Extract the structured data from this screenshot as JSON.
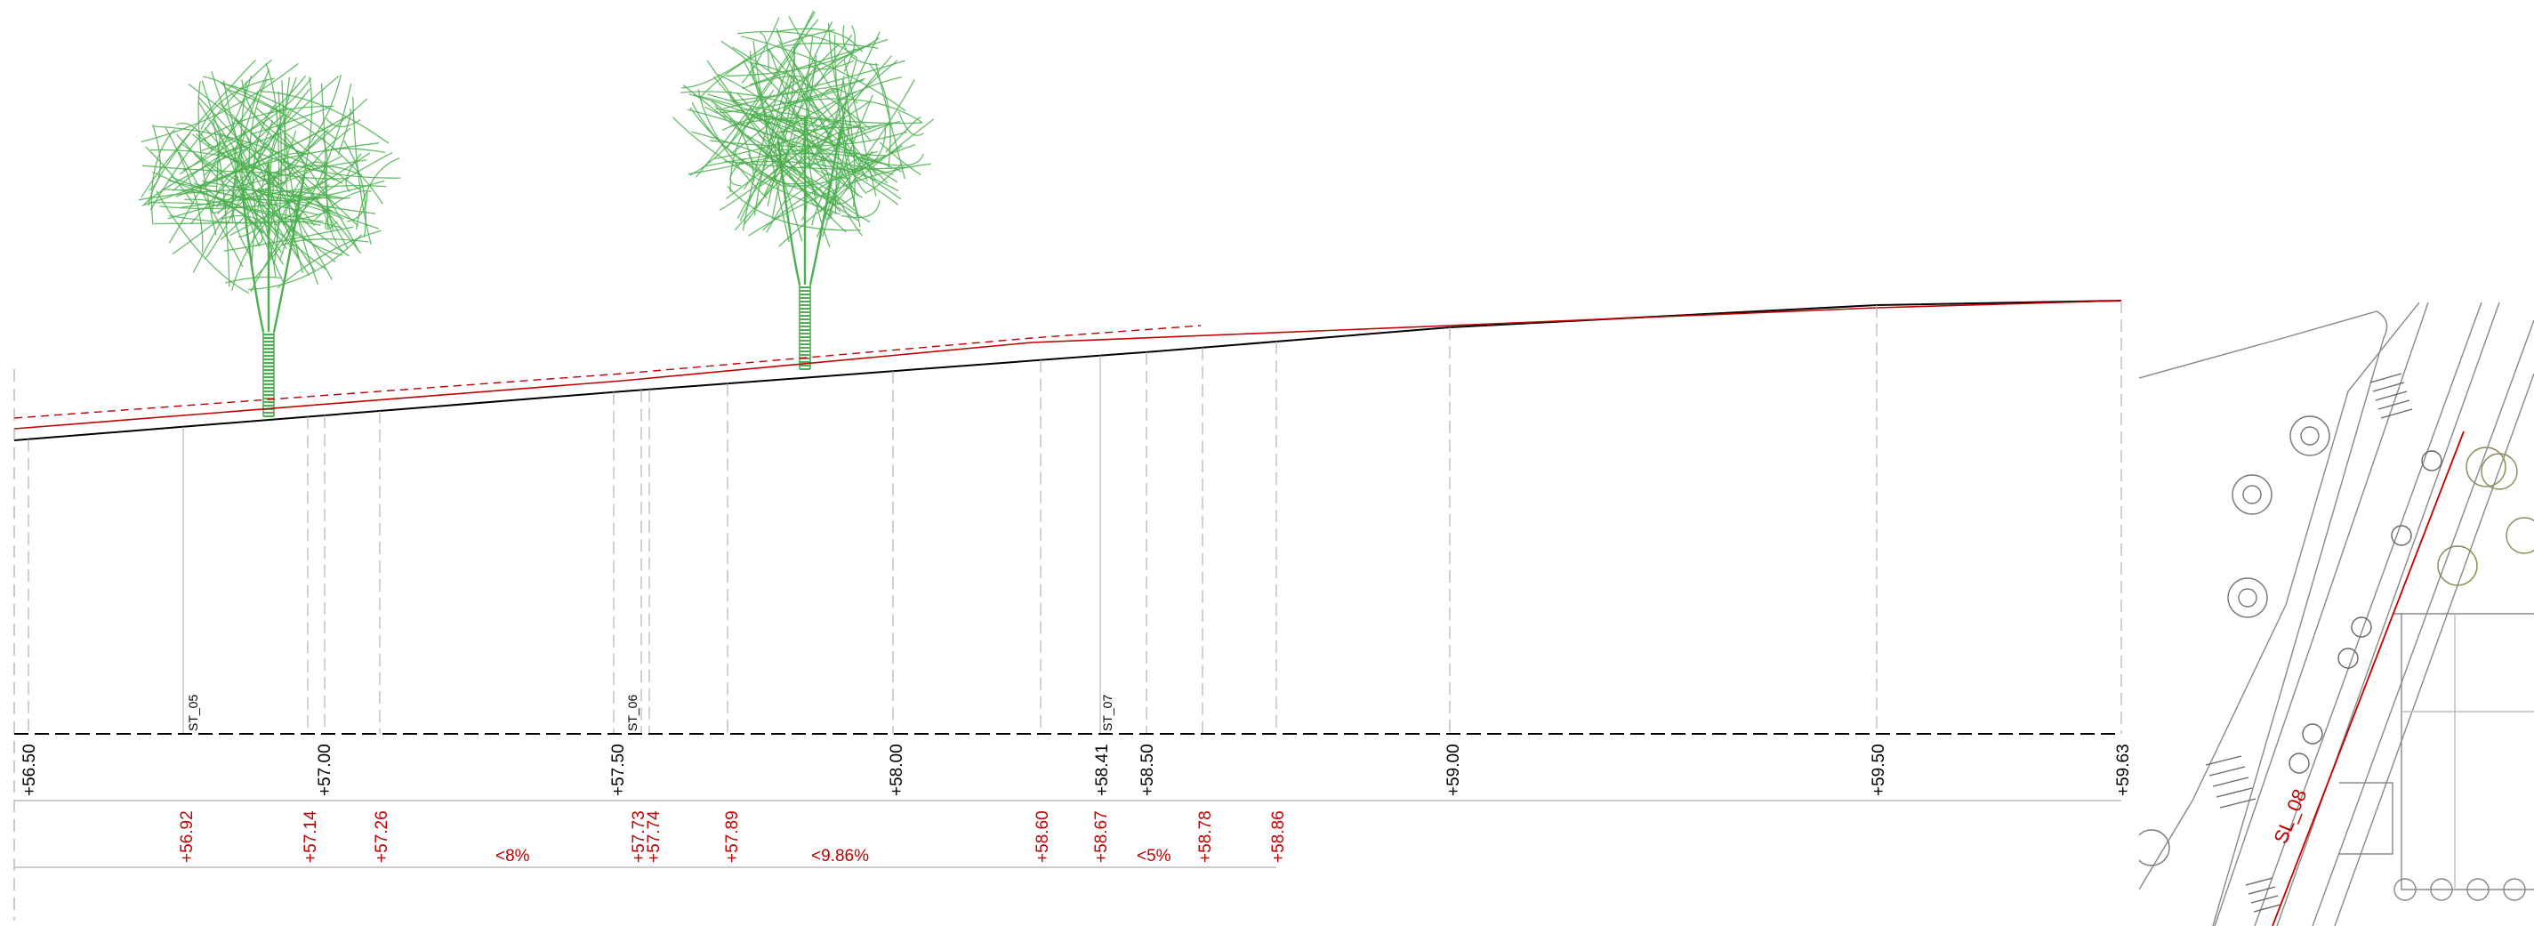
{
  "profile": {
    "levels_top": [
      "+56.50",
      "+57.00",
      "+57.50",
      "+58.00",
      "+58.41",
      "+58.50",
      "+59.00",
      "+59.50",
      "+59.63"
    ],
    "levels_design": [
      "+56.92",
      "+57.14",
      "+57.26",
      "+57.73",
      "+57.74",
      "+57.89",
      "+58.60",
      "+58.67",
      "+58.78",
      "+58.86"
    ],
    "slopes": [
      "<8%",
      "<9.86%",
      "<5%"
    ],
    "stations": [
      "ST_05",
      "ST_06",
      "ST_07"
    ]
  },
  "plan": {
    "section_label": "SL_08"
  },
  "colors": {
    "terrain_line": "#000000",
    "design_line": "#c00000",
    "tree": "#4caf50",
    "guide": "#b0b0b0"
  }
}
